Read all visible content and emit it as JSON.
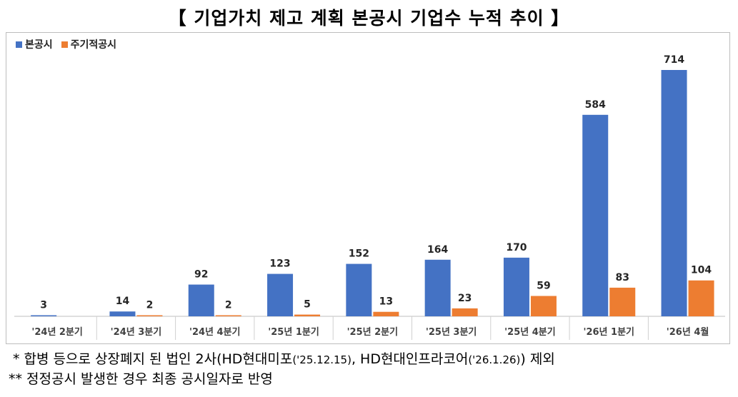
{
  "title": "【 기업가치 제고 계획 본공시 기업수 누적 추이 】",
  "chart_data": {
    "type": "bar",
    "categories": [
      "'24년 2분기",
      "'24년 3분기",
      "'24년 4분기",
      "'25년 1분기",
      "'25년 2분기",
      "'25년 3분기",
      "'25년 4분기",
      "'26년 1분기",
      "'26년 4월"
    ],
    "series": [
      {
        "name": "본공시",
        "color": "#4472C4",
        "values": [
          3,
          14,
          92,
          123,
          152,
          164,
          170,
          584,
          714
        ]
      },
      {
        "name": "주기적공시",
        "color": "#ED7D31",
        "values": [
          null,
          2,
          2,
          5,
          13,
          23,
          59,
          83,
          104
        ]
      }
    ],
    "legend_position": "top-left",
    "grid": false
  },
  "notes": {
    "note1_main": "* 합병 등으로 상장폐지 된 법인 2사(HD현대미포",
    "note1_date1": "('25.12.15)",
    "note1_mid": ", HD현대인프라코어",
    "note1_date2": "('26.1.26)",
    "note1_end": ") 제외",
    "note2": "** 정정공시 발생한 경우 최종 공시일자로 반영"
  }
}
